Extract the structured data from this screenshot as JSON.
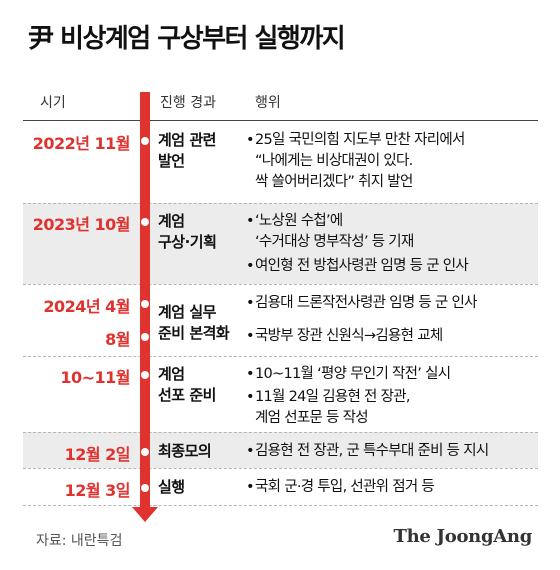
{
  "title": "尹 비상계엄 구상부터 실행까지",
  "headers": {
    "period": "시기",
    "stage": "진행 경과",
    "action": "행위"
  },
  "rows": [
    {
      "date": "2022년 11월",
      "stage": "계엄 관련\n발언",
      "items": [
        "25일 국민의힘 지도부 만찬 자리에서\n“나에게는 비상대권이 있다.\n싹 쓸어버리겠다” 취지 발언"
      ]
    },
    {
      "date": "2023년 10월",
      "stage": "계엄\n구상·기획",
      "items": [
        "‘노상원 수첩’에\n‘수거대상 명부작성’ 등 기재",
        "여인형 전 방첩사령관 임명 등 군 인사"
      ]
    },
    {
      "date": "2024년 4월",
      "stage": "계엄 실무\n준비 본격화",
      "items": [
        "김용대 드론작전사령관 임명 등 군 인사"
      ]
    },
    {
      "date": "8월",
      "stage": "",
      "items": [
        "국방부 장관 신원식→김용현 교체"
      ]
    },
    {
      "date": "10~11월",
      "stage": "계엄\n선포 준비",
      "items": [
        "10~11월 ‘평양 무인기 작전’ 실시",
        "11월 24일 김용현 전 장관,\n계엄 선포문 등 작성"
      ]
    },
    {
      "date": "12월 2일",
      "stage": "최종모의",
      "items": [
        "김용현 전 장관, 군 특수부대 준비 등 지시"
      ]
    },
    {
      "date": "12월 3일",
      "stage": "실행",
      "items": [
        "국회 군·경 투입, 선관위 점거 등"
      ]
    }
  ],
  "source": "자료: 내란특검",
  "logo": "The JoongAng",
  "colors": {
    "accent": "#e0322f",
    "shade": "#ececec"
  }
}
